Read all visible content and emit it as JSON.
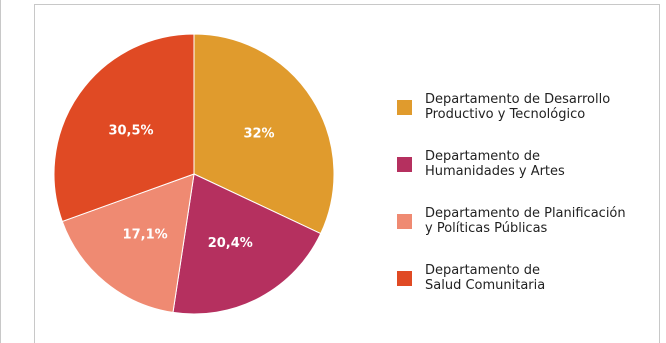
{
  "chart_data": {
    "type": "pie",
    "title": "",
    "categories": [
      "Departamento de Desarrollo\nProductivo y Tecnológico",
      "Departamento de\nHumanidades y Artes",
      "Departamento de Planificación\ny Políticas Públicas",
      "Departamento de\nSalud Comunitaria"
    ],
    "values": [
      32,
      20.4,
      17.1,
      30.5
    ],
    "data_labels": [
      "32%",
      "20,4%",
      "17,1%",
      "30,5%"
    ],
    "colors": [
      "#e09b2d",
      "#b5305f",
      "#ef8a72",
      "#e04a24"
    ],
    "start": "top, clockwise",
    "legend_position": "right"
  }
}
